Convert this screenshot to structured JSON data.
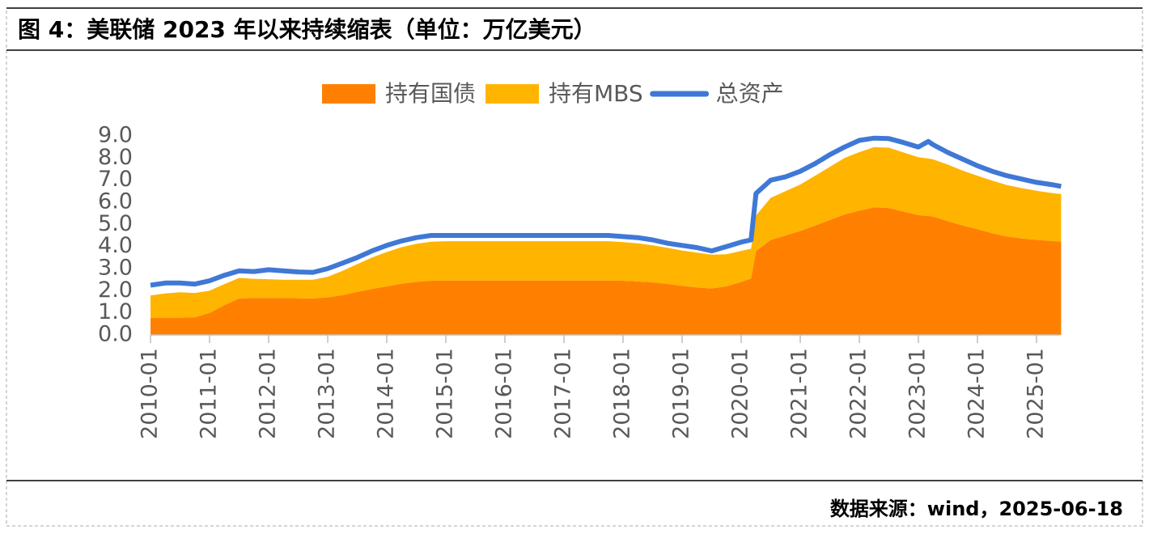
{
  "chart_data": {
    "type": "area",
    "title": "图 4：美联储 2023 年以来持续缩表（单位：万亿美元）",
    "source": "数据来源：wind，2025-06-18",
    "x": [
      "2010-01",
      "2010-04",
      "2010-07",
      "2010-10",
      "2011-01",
      "2011-04",
      "2011-07",
      "2011-10",
      "2012-01",
      "2012-04",
      "2012-07",
      "2012-10",
      "2013-01",
      "2013-04",
      "2013-07",
      "2013-10",
      "2014-01",
      "2014-04",
      "2014-07",
      "2014-10",
      "2015-01",
      "2015-04",
      "2015-07",
      "2015-10",
      "2016-01",
      "2016-04",
      "2016-07",
      "2016-10",
      "2017-01",
      "2017-04",
      "2017-07",
      "2017-10",
      "2018-01",
      "2018-04",
      "2018-07",
      "2018-10",
      "2019-01",
      "2019-04",
      "2019-07",
      "2019-10",
      "2020-01",
      "2020-03",
      "2020-04",
      "2020-07",
      "2020-10",
      "2021-01",
      "2021-04",
      "2021-07",
      "2021-10",
      "2022-01",
      "2022-04",
      "2022-07",
      "2022-10",
      "2023-01",
      "2023-03",
      "2023-04",
      "2023-07",
      "2023-10",
      "2024-01",
      "2024-04",
      "2024-07",
      "2024-10",
      "2025-01",
      "2025-04",
      "2025-06"
    ],
    "series": [
      {
        "name": "持有国债",
        "color": "#ff8000",
        "type": "area",
        "stacked": true,
        "values": [
          0.78,
          0.78,
          0.78,
          0.8,
          1.0,
          1.35,
          1.65,
          1.67,
          1.67,
          1.67,
          1.66,
          1.65,
          1.7,
          1.8,
          1.95,
          2.08,
          2.2,
          2.32,
          2.4,
          2.45,
          2.46,
          2.46,
          2.46,
          2.46,
          2.46,
          2.46,
          2.46,
          2.46,
          2.46,
          2.46,
          2.46,
          2.46,
          2.45,
          2.42,
          2.38,
          2.31,
          2.22,
          2.15,
          2.1,
          2.2,
          2.4,
          2.55,
          3.8,
          4.3,
          4.5,
          4.7,
          4.95,
          5.2,
          5.45,
          5.62,
          5.77,
          5.74,
          5.58,
          5.42,
          5.38,
          5.35,
          5.15,
          4.95,
          4.78,
          4.6,
          4.45,
          4.37,
          4.3,
          4.25,
          4.22
        ]
      },
      {
        "name": "持有MBS",
        "color": "#ffb400",
        "type": "area",
        "stacked": true,
        "values": [
          1.0,
          1.1,
          1.15,
          1.1,
          1.0,
          0.95,
          0.93,
          0.87,
          0.85,
          0.83,
          0.84,
          0.85,
          0.93,
          1.1,
          1.25,
          1.42,
          1.55,
          1.65,
          1.72,
          1.77,
          1.78,
          1.78,
          1.78,
          1.78,
          1.78,
          1.78,
          1.78,
          1.78,
          1.78,
          1.78,
          1.78,
          1.78,
          1.75,
          1.72,
          1.67,
          1.63,
          1.6,
          1.57,
          1.53,
          1.45,
          1.4,
          1.35,
          1.6,
          1.9,
          2.0,
          2.1,
          2.25,
          2.4,
          2.55,
          2.65,
          2.72,
          2.73,
          2.67,
          2.62,
          2.6,
          2.59,
          2.55,
          2.48,
          2.42,
          2.38,
          2.33,
          2.27,
          2.22,
          2.17,
          2.15
        ]
      },
      {
        "name": "总资产",
        "color": "#3f78d6",
        "type": "line",
        "values": [
          2.25,
          2.35,
          2.35,
          2.3,
          2.45,
          2.7,
          2.9,
          2.87,
          2.95,
          2.9,
          2.85,
          2.83,
          3.0,
          3.25,
          3.5,
          3.8,
          4.05,
          4.25,
          4.4,
          4.5,
          4.5,
          4.5,
          4.5,
          4.5,
          4.5,
          4.5,
          4.5,
          4.5,
          4.5,
          4.5,
          4.5,
          4.5,
          4.45,
          4.4,
          4.3,
          4.15,
          4.05,
          3.95,
          3.8,
          4.0,
          4.2,
          4.3,
          6.4,
          7.0,
          7.15,
          7.4,
          7.75,
          8.15,
          8.5,
          8.8,
          8.9,
          8.88,
          8.7,
          8.5,
          8.75,
          8.6,
          8.25,
          7.95,
          7.65,
          7.4,
          7.2,
          7.05,
          6.9,
          6.8,
          6.72
        ]
      }
    ],
    "xticks": [
      "2010-01",
      "2011-01",
      "2012-01",
      "2013-01",
      "2014-01",
      "2015-01",
      "2016-01",
      "2017-01",
      "2018-01",
      "2019-01",
      "2020-01",
      "2021-01",
      "2022-01",
      "2023-01",
      "2024-01",
      "2025-01"
    ],
    "ylim": [
      0,
      9
    ],
    "yticks": [
      {
        "value": 0,
        "label": "0.0"
      },
      {
        "value": 1,
        "label": "1.0"
      },
      {
        "value": 2,
        "label": "2.0"
      },
      {
        "value": 3,
        "label": "3.0"
      },
      {
        "value": 4,
        "label": "4.0"
      },
      {
        "value": 5,
        "label": "5.0"
      },
      {
        "value": 6,
        "label": "6.0"
      },
      {
        "value": 7,
        "label": "7.0"
      },
      {
        "value": 8,
        "label": "8.0"
      },
      {
        "value": 9,
        "label": "9.0"
      }
    ],
    "grid": false,
    "legend": "top"
  }
}
